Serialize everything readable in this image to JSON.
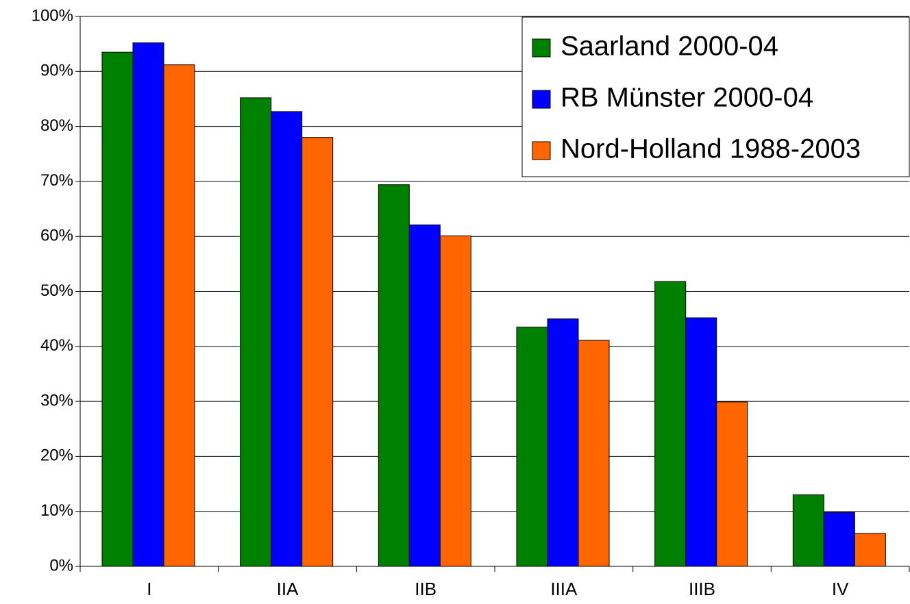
{
  "chart_data": {
    "type": "bar",
    "categories": [
      "I",
      "IIA",
      "IIB",
      "IIIA",
      "IIIB",
      "IV"
    ],
    "series": [
      {
        "name": "Saarland 2000-04",
        "color": "#008000",
        "values": [
          93.5,
          85.2,
          69.4,
          43.5,
          51.8,
          13.0
        ]
      },
      {
        "name": "RB Münster 2000-04",
        "color": "#0000ff",
        "values": [
          95.2,
          82.7,
          62.1,
          45.0,
          45.2,
          9.8
        ]
      },
      {
        "name": "Nord-Holland 1988-2003",
        "color": "#ff6600",
        "values": [
          91.2,
          78.0,
          60.1,
          41.1,
          29.9,
          6.0
        ]
      }
    ],
    "ylim": [
      0,
      100
    ],
    "yticks": [
      {
        "value": 0,
        "label": "0%"
      },
      {
        "value": 10,
        "label": "10%"
      },
      {
        "value": 20,
        "label": "20%"
      },
      {
        "value": 30,
        "label": "30%"
      },
      {
        "value": 40,
        "label": "40%"
      },
      {
        "value": 50,
        "label": "50%"
      },
      {
        "value": 60,
        "label": "60%"
      },
      {
        "value": 70,
        "label": "70%"
      },
      {
        "value": 80,
        "label": "80%"
      },
      {
        "value": 90,
        "label": "90%"
      },
      {
        "value": 100,
        "label": "100%"
      }
    ],
    "grid": true,
    "legend": "top-right"
  }
}
